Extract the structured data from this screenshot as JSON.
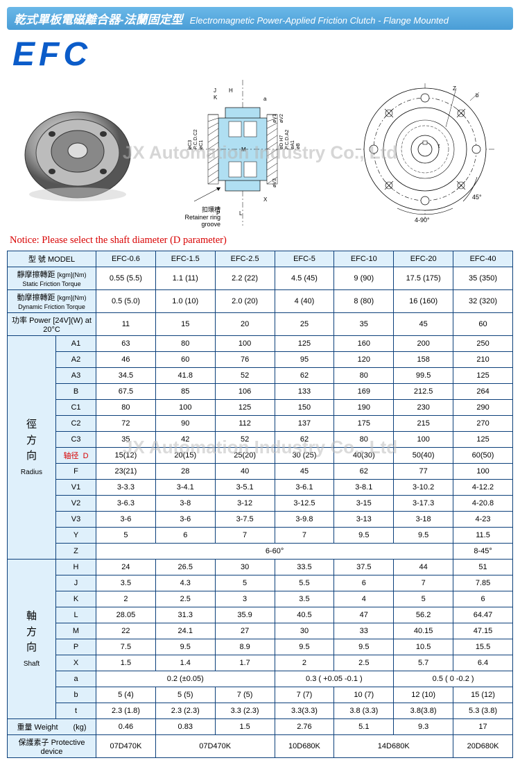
{
  "header": {
    "cn": "乾式單板電磁離合器-法蘭固定型",
    "en": "Electromagnetic Power-Applied Friction Clutch - Flange Mounted"
  },
  "logo": "EFC",
  "watermark": "JX Automation Industry Co., Ltd",
  "retainer_cn": "扣環槽",
  "retainer_en": "Retainer ring groove",
  "angle_45": "45°",
  "angle_490": "4-90°",
  "notice": "Notice: Please select the shaft diameter (D parameter)",
  "table": {
    "model_label_cn": "型 號",
    "model_label_en": "MODEL",
    "models": [
      "EFC-0.6",
      "EFC-1.5",
      "EFC-2.5",
      "EFC-5",
      "EFC-10",
      "EFC-20",
      "EFC-40"
    ],
    "static_cn": "靜摩擦轉距",
    "static_en": "Static Friction Torque",
    "static_unit": "[kgm](Nm)",
    "static_vals": [
      "0.55 (5.5)",
      "1.1 (11)",
      "2.2 (22)",
      "4.5 (45)",
      "9 (90)",
      "17.5 (175)",
      "35 (350)"
    ],
    "dynamic_cn": "動摩擦轉距",
    "dynamic_en": "Dynamic Friction Torque",
    "dynamic_unit": "[kgm](Nm)",
    "dynamic_vals": [
      "0.5 (5.0)",
      "1.0 (10)",
      "2.0 (20)",
      "4 (40)",
      "8 (80)",
      "16 (160)",
      "32 (320)"
    ],
    "power_label": "功率 Power [24V](W) at 20°C",
    "power_vals": [
      "11",
      "15",
      "20",
      "25",
      "35",
      "45",
      "60"
    ],
    "radius_label_cn": "徑方向",
    "radius_label_cn_c1": "徑",
    "radius_label_cn_c2": "方",
    "radius_label_cn_c3": "向",
    "radius_label_en": "Radius",
    "shaft_label_cn_c1": "軸",
    "shaft_label_cn_c2": "方",
    "shaft_label_cn_c3": "向",
    "shaft_label_en": "Shaft",
    "d_label": "轴径",
    "radius_rows": [
      {
        "p": "A1",
        "v": [
          "63",
          "80",
          "100",
          "125",
          "160",
          "200",
          "250"
        ]
      },
      {
        "p": "A2",
        "v": [
          "46",
          "60",
          "76",
          "95",
          "120",
          "158",
          "210"
        ]
      },
      {
        "p": "A3",
        "v": [
          "34.5",
          "41.8",
          "52",
          "62",
          "80",
          "99.5",
          "125"
        ]
      },
      {
        "p": "B",
        "v": [
          "67.5",
          "85",
          "106",
          "133",
          "169",
          "212.5",
          "264"
        ]
      },
      {
        "p": "C1",
        "v": [
          "80",
          "100",
          "125",
          "150",
          "190",
          "230",
          "290"
        ]
      },
      {
        "p": "C2",
        "v": [
          "72",
          "90",
          "112",
          "137",
          "175",
          "215",
          "270"
        ]
      },
      {
        "p": "C3",
        "v": [
          "35",
          "42",
          "52",
          "62",
          "80",
          "100",
          "125"
        ]
      },
      {
        "p": "D",
        "v": [
          "15(12)",
          "20(15)",
          "25(20)",
          "30 (25)",
          "40(30)",
          "50(40)",
          "60(50)"
        ],
        "red": true
      },
      {
        "p": "F",
        "v": [
          "23(21)",
          "28",
          "40",
          "45",
          "62",
          "77",
          "100"
        ]
      },
      {
        "p": "V1",
        "v": [
          "3-3.3",
          "3-4.1",
          "3-5.1",
          "3-6.1",
          "3-8.1",
          "3-10.2",
          "4-12.2"
        ]
      },
      {
        "p": "V2",
        "v": [
          "3-6.3",
          "3-8",
          "3-12",
          "3-12.5",
          "3-15",
          "3-17.3",
          "4-20.8"
        ]
      },
      {
        "p": "V3",
        "v": [
          "3-6",
          "3-6",
          "3-7.5",
          "3-9.8",
          "3-13",
          "3-18",
          "4-23"
        ]
      },
      {
        "p": "Y",
        "v": [
          "5",
          "6",
          "7",
          "7",
          "9.5",
          "9.5",
          "11.5"
        ]
      }
    ],
    "z_label": "Z",
    "z_span1": "6-60°",
    "z_span2": "8-45°",
    "shaft_rows": [
      {
        "p": "H",
        "v": [
          "24",
          "26.5",
          "30",
          "33.5",
          "37.5",
          "44",
          "51"
        ]
      },
      {
        "p": "J",
        "v": [
          "3.5",
          "4.3",
          "5",
          "5.5",
          "6",
          "7",
          "7.85"
        ]
      },
      {
        "p": "K",
        "v": [
          "2",
          "2.5",
          "3",
          "3.5",
          "4",
          "5",
          "6"
        ]
      },
      {
        "p": "L",
        "v": [
          "28.05",
          "31.3",
          "35.9",
          "40.5",
          "47",
          "56.2",
          "64.47"
        ]
      },
      {
        "p": "M",
        "v": [
          "22",
          "24.1",
          "27",
          "30",
          "33",
          "40.15",
          "47.15"
        ]
      },
      {
        "p": "P",
        "v": [
          "7.5",
          "9.5",
          "8.9",
          "9.5",
          "9.5",
          "10.5",
          "15.5"
        ]
      },
      {
        "p": "X",
        "v": [
          "1.5",
          "1.4",
          "1.7",
          "2",
          "2.5",
          "5.7",
          "6.4"
        ]
      }
    ],
    "a_label": "a",
    "a_span1": "0.2 (±0.05)",
    "a_span2": "0.3 ( +0.05 -0.1 )",
    "a_span3": "0.5 ( 0 -0.2 )",
    "b_row": {
      "p": "b",
      "v": [
        "5 (4)",
        "5 (5)",
        "7 (5)",
        "7 (7)",
        "10 (7)",
        "12 (10)",
        "15 (12)"
      ]
    },
    "t_row": {
      "p": "t",
      "v": [
        "2.3 (1.8)",
        "2.3 (2.3)",
        "3.3 (2.3)",
        "3.3(3.3)",
        "3.8 (3.3)",
        "3.8(3.8)",
        "5.3 (3.8)"
      ]
    },
    "weight_label": "重量 Weight　　(kg)",
    "weight_vals": [
      "0.46",
      "0.83",
      "1.5",
      "2.76",
      "5.1",
      "9.3",
      "17"
    ],
    "protect_label": "保護素子 Protective device",
    "protect_span1": "07D470K",
    "protect_span2": "07D470K",
    "protect_span3": "10D680K",
    "protect_span4": "14D680K",
    "protect_span5": "20D680K"
  },
  "colors": {
    "header_grad_top": "#6bb8e8",
    "header_grad_bot": "#4a9dd6",
    "logo": "#0b5cc9",
    "border": "#0b3f7a",
    "th_bg": "#dff0fb",
    "red": "#d80000",
    "diagram_blue": "#b0dff2"
  }
}
